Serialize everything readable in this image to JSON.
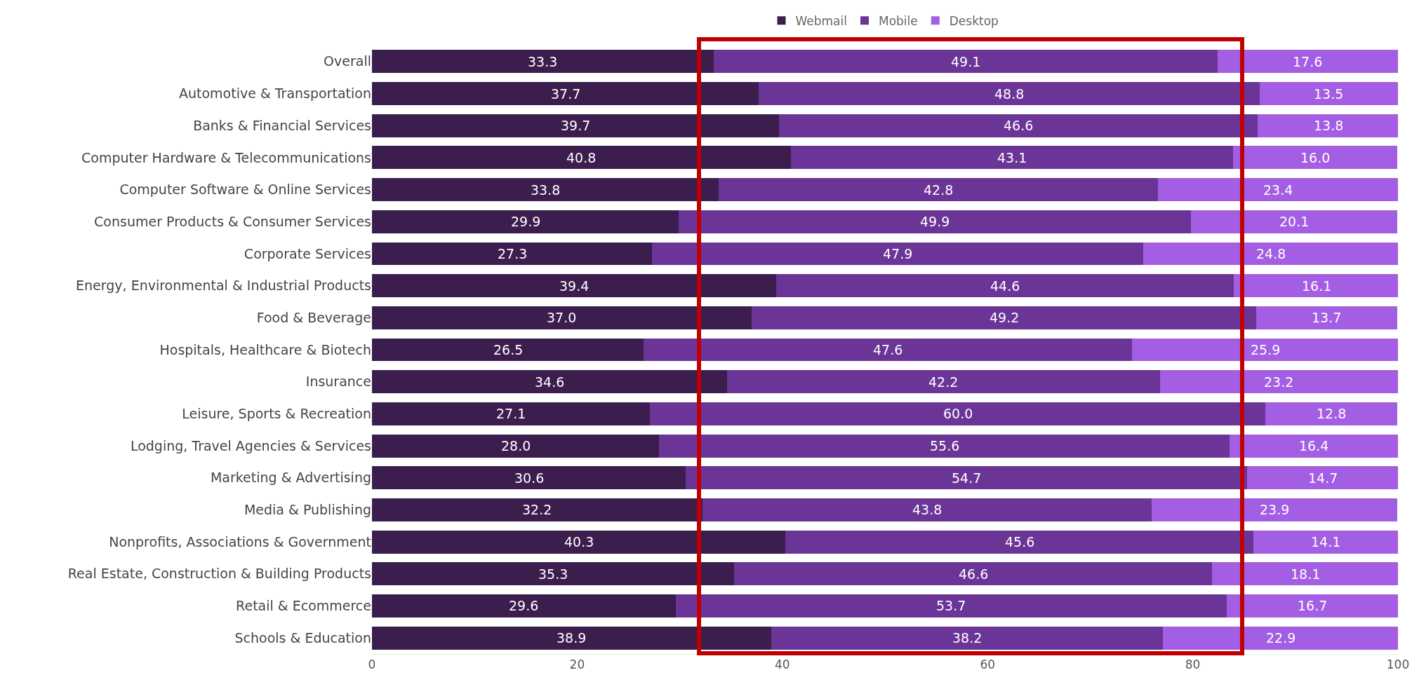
{
  "chart_data": {
    "type": "bar",
    "orientation": "horizontal",
    "stacked": true,
    "categories": [
      "Overall",
      "Automotive & Transportation",
      "Banks & Financial Services",
      "Computer Hardware & Telecommunications",
      "Computer Software & Online Services",
      "Consumer Products & Consumer Services",
      "Corporate Services",
      "Energy, Environmental & Industrial Products",
      "Food & Beverage",
      "Hospitals, Healthcare & Biotech",
      "Insurance",
      "Leisure, Sports & Recreation",
      "Lodging, Travel Agencies & Services",
      "Marketing & Advertising",
      "Media & Publishing",
      "Nonprofits, Associations & Government",
      "Real Estate, Construction & Building Products",
      "Retail & Ecommerce",
      "Schools & Education"
    ],
    "series": [
      {
        "name": "Webmail",
        "color": "#3b1d4e",
        "values": [
          33.3,
          37.7,
          39.7,
          40.8,
          33.8,
          29.9,
          27.3,
          39.4,
          37.0,
          26.5,
          34.6,
          27.1,
          28.0,
          30.6,
          32.2,
          40.3,
          35.3,
          29.6,
          38.9
        ],
        "value_labels": [
          "33.3",
          "37.7",
          "39.7",
          "40.8",
          "33.8",
          "29.9",
          "27.3",
          "39.4",
          "37.0",
          "26.5",
          "34.6",
          "27.1",
          "28.0",
          "30.6",
          "32.2",
          "40.3",
          "35.3",
          "29.6",
          "38.9"
        ]
      },
      {
        "name": "Mobile",
        "color": "#6b3497",
        "values": [
          49.1,
          48.8,
          46.6,
          43.1,
          42.8,
          49.9,
          47.9,
          44.6,
          49.2,
          47.6,
          42.2,
          60.0,
          55.6,
          54.7,
          43.8,
          45.6,
          46.6,
          53.7,
          38.2
        ],
        "value_labels": [
          "49.1",
          "48.8",
          "46.6",
          "43.1",
          "42.8",
          "49.9",
          "47.9",
          "44.6",
          "49.2",
          "47.6",
          "42.2",
          "60.0",
          "55.6",
          "54.7",
          "43.8",
          "45.6",
          "46.6",
          "53.7",
          "38.2"
        ]
      },
      {
        "name": "Desktop",
        "color": "#a45ee3",
        "values": [
          17.6,
          13.5,
          13.8,
          16.0,
          23.4,
          20.1,
          24.8,
          16.1,
          13.7,
          25.9,
          23.2,
          12.8,
          16.4,
          14.7,
          23.9,
          14.1,
          18.1,
          16.7,
          22.9
        ],
        "value_labels": [
          "17.6",
          "13.5",
          "13.8",
          "16.0",
          "23.4",
          "20.1",
          "24.8",
          "16.1",
          "13.7",
          "25.9",
          "23.2",
          "12.8",
          "16.4",
          "14.7",
          "23.9",
          "14.1",
          "18.1",
          "16.7",
          "22.9"
        ]
      }
    ],
    "xlim": [
      0,
      100
    ],
    "xticks": [
      0,
      20,
      40,
      60,
      80,
      100
    ],
    "grid": false,
    "legend": "top"
  }
}
